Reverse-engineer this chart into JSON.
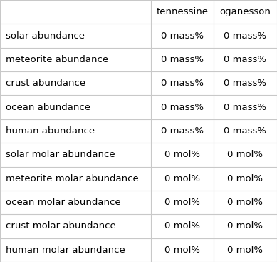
{
  "columns": [
    "",
    "tennessine",
    "oganesson"
  ],
  "rows": [
    [
      "solar abundance",
      "0 mass%",
      "0 mass%"
    ],
    [
      "meteorite abundance",
      "0 mass%",
      "0 mass%"
    ],
    [
      "crust abundance",
      "0 mass%",
      "0 mass%"
    ],
    [
      "ocean abundance",
      "0 mass%",
      "0 mass%"
    ],
    [
      "human abundance",
      "0 mass%",
      "0 mass%"
    ],
    [
      "solar molar abundance",
      "0 mol%",
      "0 mol%"
    ],
    [
      "meteorite molar abundance",
      "0 mol%",
      "0 mol%"
    ],
    [
      "ocean molar abundance",
      "0 mol%",
      "0 mol%"
    ],
    [
      "crust molar abundance",
      "0 mol%",
      "0 mol%"
    ],
    [
      "human molar abundance",
      "0 mol%",
      "0 mol%"
    ]
  ],
  "background_color": "#ffffff",
  "text_color": "#000000",
  "grid_color": "#c8c8c8",
  "font_size": 9.5,
  "fig_width": 3.89,
  "fig_height": 3.67,
  "dpi": 100
}
